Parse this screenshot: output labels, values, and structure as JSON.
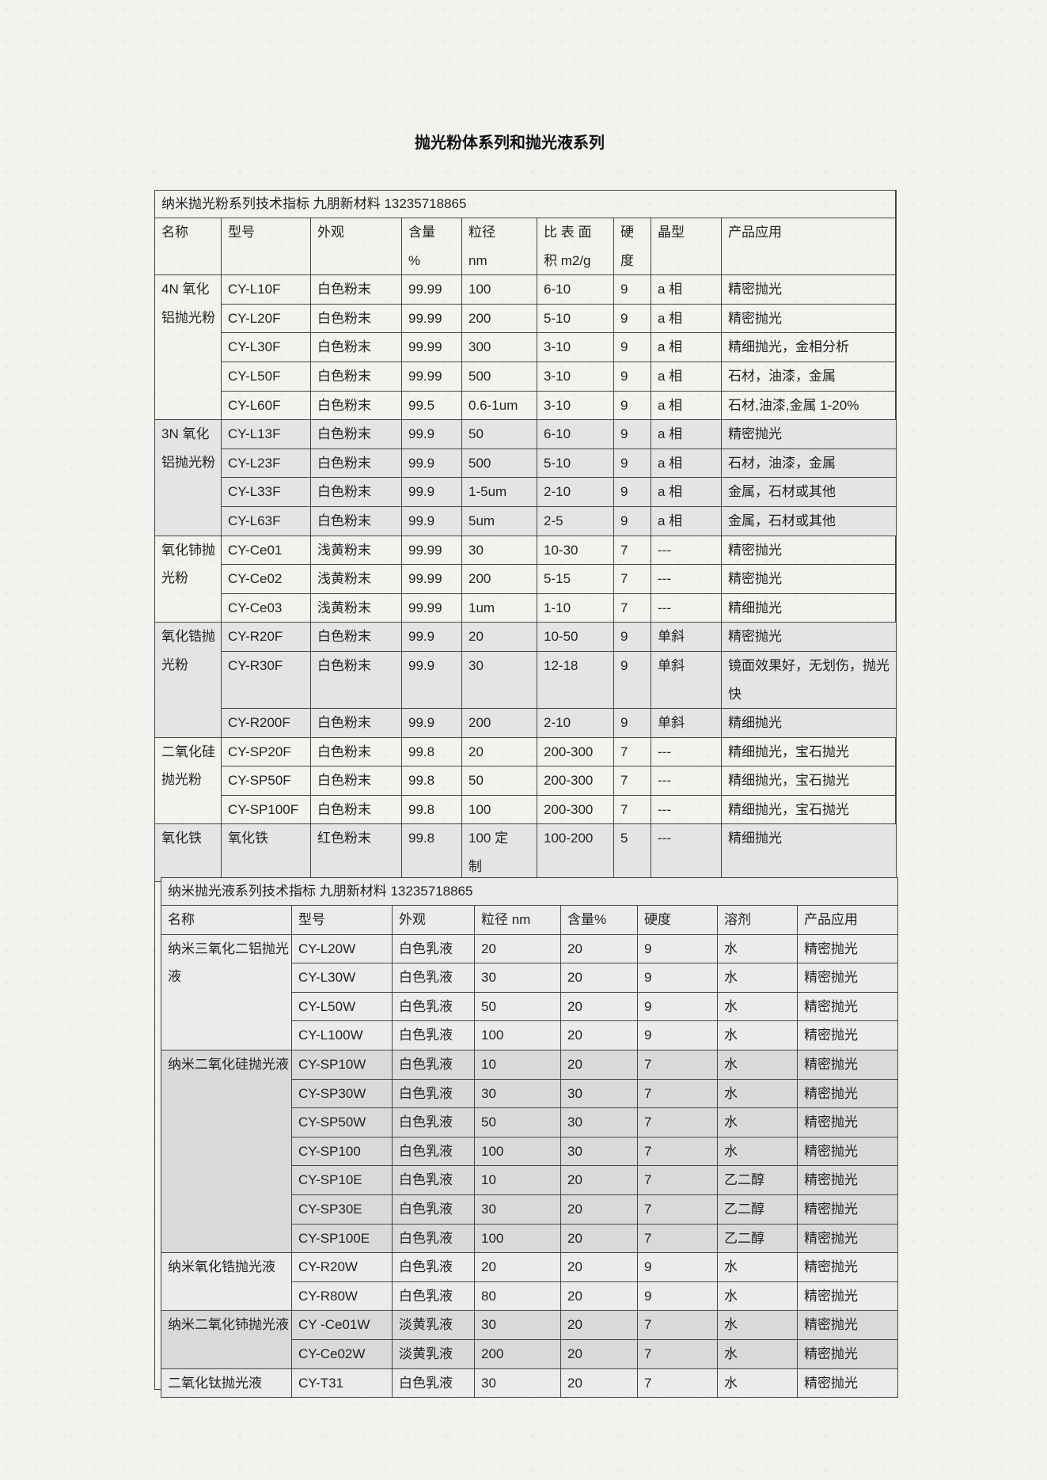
{
  "title": "抛光粉体系列和抛光液系列",
  "powder_table": {
    "title": "纳米抛光粉系列技术指标    九朋新材料 13235718865",
    "headers": [
      "名称",
      "型号",
      "外观",
      "含量\n%",
      "粒径\n nm",
      "比 表 面\n积 m2/g",
      "硬\n度",
      "晶型",
      "产品应用"
    ],
    "groups": [
      {
        "name": "4N  氧化铝抛光粉",
        "rows": [
          [
            "CY-L10F",
            "白色粉末",
            "99.99",
            "100",
            "6-10",
            "9",
            "a 相",
            "精密抛光"
          ],
          [
            "CY-L20F",
            "白色粉末",
            "99.99",
            "200",
            "5-10",
            "9",
            "a 相",
            "精密抛光"
          ],
          [
            "CY-L30F",
            "白色粉末",
            "99.99",
            "300",
            "3-10",
            "9",
            "a 相",
            "精细抛光，金相分析"
          ],
          [
            "CY-L50F",
            "白色粉末",
            "99.99",
            "500",
            "3-10",
            "9",
            "a 相",
            "石材，油漆，金属"
          ],
          [
            "CY-L60F",
            "白色粉末",
            "99.5",
            "0.6-1um",
            "3-10",
            "9",
            "a 相",
            "石材,油漆,金属 1-20%"
          ]
        ]
      },
      {
        "name": "3N  氧化铝抛光粉",
        "rows": [
          [
            "CY-L13F",
            "白色粉末",
            "99.9",
            "50",
            "6-10",
            "9",
            "a 相",
            "精密抛光"
          ],
          [
            "CY-L23F",
            "白色粉末",
            "99.9",
            "500",
            "5-10",
            "9",
            "a 相",
            "石材，油漆，金属"
          ],
          [
            "CY-L33F",
            "白色粉末",
            "99.9",
            "1-5um",
            "2-10",
            "9",
            "a 相",
            "金属，石材或其他"
          ],
          [
            "CY-L63F",
            "白色粉末",
            "99.9",
            "5um",
            "2-5",
            "9",
            "a 相",
            "金属，石材或其他"
          ]
        ]
      },
      {
        "name": "氧化铈抛光粉",
        "rows": [
          [
            "CY-Ce01",
            "浅黄粉末",
            "99.99",
            "30",
            "10-30",
            "7",
            "---",
            "精密抛光"
          ],
          [
            "CY-Ce02",
            "浅黄粉末",
            "99.99",
            "200",
            "5-15",
            "7",
            "---",
            "精密抛光"
          ],
          [
            "CY-Ce03",
            "浅黄粉末",
            "99.99",
            "1um",
            "1-10",
            "7",
            "---",
            "精细抛光"
          ]
        ]
      },
      {
        "name": "氧化锆抛光粉",
        "rows": [
          [
            "CY-R20F",
            "白色粉末",
            "99.9",
            "20",
            "10-50",
            "9",
            "单斜",
            "精密抛光"
          ],
          [
            "CY-R30F",
            "白色粉末",
            "99.9",
            "30",
            "12-18",
            "9",
            "单斜",
            "镜面效果好，无划伤，抛光快"
          ],
          [
            "CY-R200F",
            "白色粉末",
            "99.9",
            "200",
            "2-10",
            "9",
            "单斜",
            "精细抛光"
          ]
        ]
      },
      {
        "name": "二氧化硅抛光粉",
        "rows": [
          [
            "CY-SP20F",
            "白色粉末",
            "99.8",
            "20",
            "200-300",
            "7",
            "---",
            "精细抛光，宝石抛光"
          ],
          [
            "CY-SP50F",
            "白色粉末",
            "99.8",
            "50",
            "200-300",
            "7",
            "---",
            "精细抛光，宝石抛光"
          ],
          [
            "CY-SP100F",
            "白色粉末",
            "99.8",
            "100",
            "200-300",
            "7",
            "---",
            "精细抛光，宝石抛光"
          ]
        ]
      },
      {
        "name": "氧化铁",
        "rows": [
          [
            "氧化铁",
            "红色粉末",
            "99.8",
            "100    定\n制",
            "100-200",
            "5",
            "---",
            "精细抛光"
          ]
        ]
      }
    ]
  },
  "liquid_table": {
    "title": "纳米抛光液系列技术指标    九朋新材料 13235718865",
    "headers": [
      "名称",
      "型号",
      "外观",
      "粒径 nm",
      "含量%",
      "硬度",
      "溶剂",
      "产品应用"
    ],
    "groups": [
      {
        "name": "纳米三氧化二铝抛光液",
        "rows": [
          [
            "CY-L20W",
            "白色乳液",
            "20",
            "20",
            "9",
            "水",
            "精密抛光"
          ],
          [
            "CY-L30W",
            "白色乳液",
            "30",
            "20",
            "9",
            "水",
            "精密抛光"
          ],
          [
            "CY-L50W",
            "白色乳液",
            "50",
            "20",
            "9",
            "水",
            "精密抛光"
          ],
          [
            "CY-L100W",
            "白色乳液",
            "100",
            "20",
            "9",
            "水",
            "精密抛光"
          ]
        ]
      },
      {
        "name": "纳米二氧化硅抛光液",
        "rows": [
          [
            "CY-SP10W",
            "白色乳液",
            "10",
            "20",
            "7",
            "水",
            "精密抛光"
          ],
          [
            "CY-SP30W",
            "白色乳液",
            "30",
            "30",
            "7",
            "水",
            "精密抛光"
          ],
          [
            "CY-SP50W",
            "白色乳液",
            "50",
            "30",
            "7",
            "水",
            "精密抛光"
          ],
          [
            "CY-SP100",
            "白色乳液",
            "100",
            "30",
            "7",
            "水",
            "精密抛光"
          ],
          [
            "CY-SP10E",
            "白色乳液",
            "10",
            "20",
            "7",
            "乙二醇",
            "精密抛光"
          ],
          [
            "CY-SP30E",
            "白色乳液",
            "30",
            "20",
            "7",
            "乙二醇",
            "精密抛光"
          ],
          [
            "CY-SP100E",
            "白色乳液",
            "100",
            "20",
            "7",
            "乙二醇",
            "精密抛光"
          ]
        ]
      },
      {
        "name": "纳米氧化锆抛光液",
        "rows": [
          [
            "CY-R20W",
            "白色乳液",
            "20",
            "20",
            "9",
            "水",
            "精密抛光"
          ],
          [
            "CY-R80W",
            "白色乳液",
            "80",
            "20",
            "9",
            "水",
            "精密抛光"
          ]
        ]
      },
      {
        "name": "纳米二氧化铈抛光液",
        "rows": [
          [
            "CY -Ce01W",
            "淡黄乳液",
            "30",
            "20",
            "7",
            "水",
            "精密抛光"
          ],
          [
            "CY-Ce02W",
            "淡黄乳液",
            "200",
            "20",
            "7",
            "水",
            "精密抛光"
          ]
        ]
      },
      {
        "name": "二氧化钛抛光液",
        "rows": [
          [
            "CY-T31",
            "白色乳液",
            "30",
            "20",
            "7",
            "水",
            "精密抛光"
          ]
        ]
      }
    ]
  }
}
